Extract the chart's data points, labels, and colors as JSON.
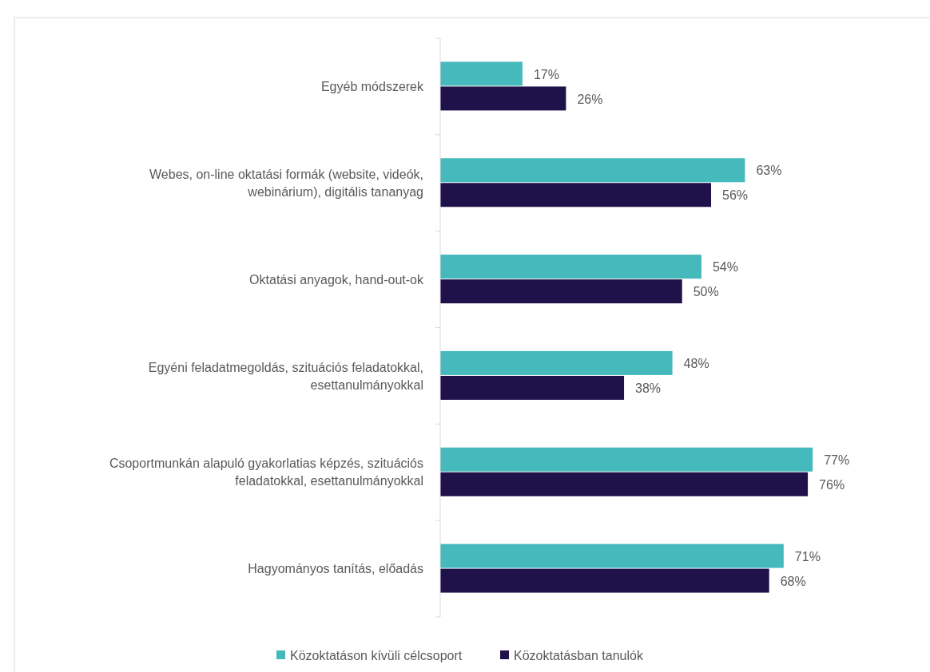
{
  "chart_data": {
    "type": "bar",
    "orientation": "horizontal",
    "categories": [
      "Egyéb módszerek",
      "Webes, on-line oktatási formák (website, videók, webinárium), digitális tananyag",
      "Oktatási anyagok, hand-out-ok",
      "Egyéni feladatmegoldás, szituációs feladatokkal, esettanulmányokkal",
      "Csoportmunkán alapuló gyakorlatias képzés, szituációs feladatokkal, esettanulmányokkal",
      "Hagyományos tanítás, előadás"
    ],
    "series": [
      {
        "name": "Közoktatáson kívüli célcsoport",
        "color": "#45b9bb",
        "values": [
          17,
          63,
          54,
          48,
          77,
          71
        ],
        "value_labels": [
          "17%",
          "63%",
          "54%",
          "48%",
          "77%",
          "71%"
        ]
      },
      {
        "name": "Közoktatásban tanulók",
        "color": "#1f124a",
        "values": [
          26,
          56,
          50,
          38,
          76,
          68
        ],
        "value_labels": [
          "26%",
          "56%",
          "50%",
          "38%",
          "76%",
          "68%"
        ]
      }
    ],
    "legend": "bottom",
    "grid": false,
    "tick_labels": "y"
  }
}
